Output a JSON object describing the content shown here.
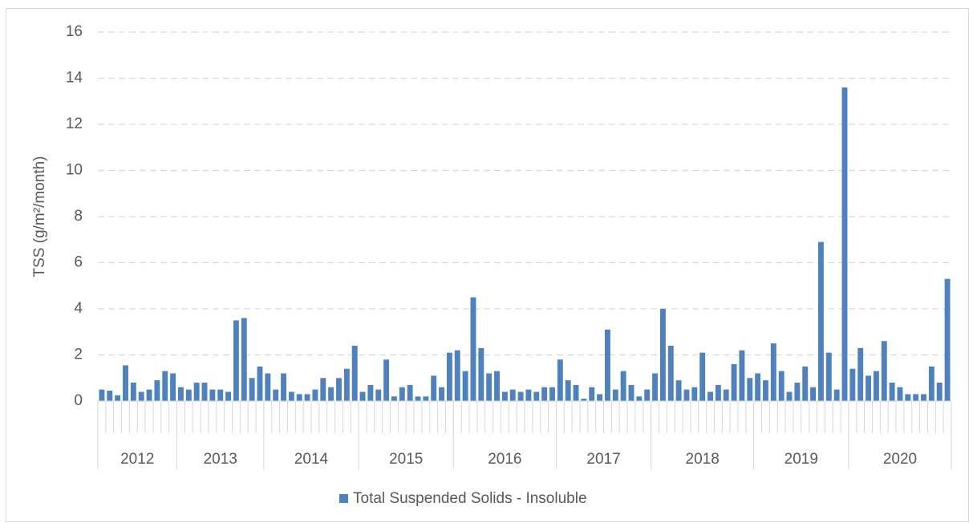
{
  "chart_data": {
    "type": "bar",
    "y_label": "TSS (g/m²/month)",
    "categories": [
      null,
      null,
      null,
      null,
      null,
      null,
      null,
      null,
      null,
      null,
      null,
      null,
      null,
      null,
      null,
      null,
      null,
      null,
      null,
      null,
      null,
      null,
      null,
      null,
      null,
      null,
      null,
      null,
      null,
      null,
      null,
      null,
      null,
      null,
      null,
      null,
      null,
      null,
      null,
      null,
      null,
      null,
      null,
      null,
      null,
      null,
      null,
      null,
      null,
      null,
      null,
      null,
      null,
      null,
      null,
      null,
      null,
      null,
      null,
      null,
      null,
      null,
      null,
      null,
      null,
      null,
      null,
      null,
      null,
      null,
      null,
      null,
      null,
      null,
      null,
      null,
      null,
      null,
      null,
      null,
      null,
      null,
      null,
      null,
      null,
      null,
      null,
      null,
      null,
      null,
      null,
      null,
      null,
      null,
      null,
      null,
      null,
      null,
      null,
      null,
      null,
      null,
      null,
      null,
      null,
      null,
      null,
      null
    ],
    "groups": [
      {
        "label": "2012",
        "count": 10
      },
      {
        "label": "2013",
        "count": 11
      },
      {
        "label": "2014",
        "count": 12
      },
      {
        "label": "2015",
        "count": 12
      },
      {
        "label": "2016",
        "count": 13
      },
      {
        "label": "2017",
        "count": 12
      },
      {
        "label": "2018",
        "count": 13
      },
      {
        "label": "2019",
        "count": 12
      },
      {
        "label": "2020",
        "count": 13
      }
    ],
    "series": [
      {
        "name": "Total Suspended Solids - Insoluble",
        "color": "#4f81bd",
        "values": [
          0.5,
          0.45,
          0.25,
          1.55,
          0.8,
          0.4,
          0.5,
          0.9,
          1.3,
          1.2,
          0.6,
          0.5,
          0.8,
          0.8,
          0.5,
          0.5,
          0.4,
          3.5,
          3.6,
          1.0,
          1.5,
          1.2,
          0.5,
          1.2,
          0.4,
          0.3,
          0.3,
          0.5,
          1.0,
          0.6,
          1.0,
          1.4,
          2.4,
          0.4,
          0.7,
          0.5,
          1.8,
          0.2,
          0.6,
          0.7,
          0.2,
          0.2,
          1.1,
          0.6,
          2.1,
          2.2,
          1.3,
          4.5,
          2.3,
          1.2,
          1.3,
          0.4,
          0.5,
          0.4,
          0.5,
          0.4,
          0.6,
          0.6,
          1.8,
          0.9,
          0.7,
          0.1,
          0.6,
          0.3,
          3.1,
          0.5,
          1.3,
          0.7,
          0.2,
          0.5,
          1.2,
          4.0,
          2.4,
          0.9,
          0.5,
          0.6,
          2.1,
          0.4,
          0.7,
          0.5,
          1.6,
          2.2,
          1.0,
          1.2,
          0.9,
          2.5,
          1.3,
          0.4,
          0.8,
          1.5,
          0.6,
          6.9,
          2.1,
          0.5,
          13.6,
          1.4,
          2.3,
          1.1,
          1.3,
          2.6,
          0.8,
          0.6,
          0.3,
          0.3,
          0.3,
          1.5,
          0.8,
          5.3
        ]
      }
    ],
    "ylim": [
      0,
      16
    ],
    "yticks": [
      0,
      2,
      4,
      6,
      8,
      10,
      12,
      14,
      16
    ],
    "grid": true,
    "legend": "bottom"
  }
}
